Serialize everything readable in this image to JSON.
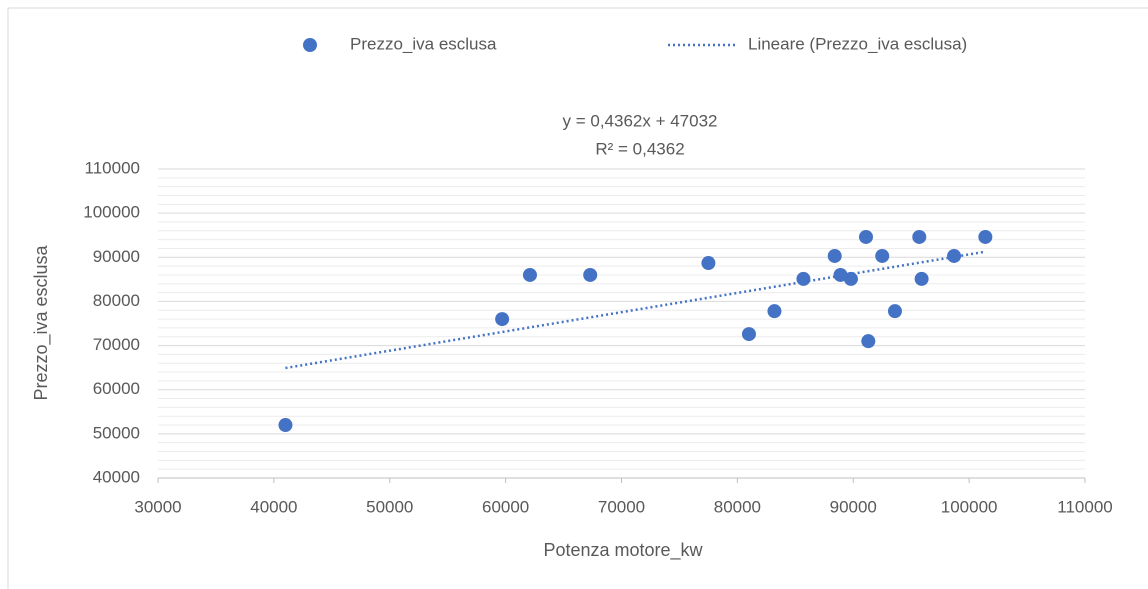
{
  "chart_data": {
    "type": "scatter",
    "x_label": "Potenza motore_kw",
    "y_label": "Prezzo_iva esclusa",
    "series": [
      {
        "name": "Prezzo_iva esclusa",
        "color": "#4472c4",
        "x": [
          41000,
          59700,
          62100,
          67300,
          77500,
          81000,
          83200,
          85700,
          88400,
          88900,
          89800,
          91100,
          91300,
          92500,
          93600,
          95700,
          95900,
          98700,
          101400
        ],
        "values": [
          52000,
          76000,
          86000,
          86000,
          88700,
          72600,
          77800,
          85100,
          90300,
          86000,
          85100,
          94600,
          71000,
          90300,
          77800,
          94600,
          85100,
          90300,
          94600
        ]
      }
    ],
    "trendline": {
      "name": "Lineare (Prezzo_iva esclusa)",
      "color": "#4472c4",
      "slope": 0.4362,
      "intercept": 47032,
      "equation_label": "y = 0,4362x + 47032",
      "r2_label": "R² = 0,4362"
    },
    "xlim": [
      30000,
      110000
    ],
    "xticks": [
      30000,
      40000,
      50000,
      60000,
      70000,
      80000,
      90000,
      100000,
      110000
    ],
    "ylim": [
      40000,
      110000
    ],
    "yticks": [
      40000,
      50000,
      60000,
      70000,
      80000,
      90000,
      100000,
      110000
    ],
    "yminorticks": [
      42000,
      44000,
      46000,
      48000,
      52000,
      54000,
      56000,
      58000,
      62000,
      64000,
      66000,
      68000,
      72000,
      74000,
      76000,
      78000,
      82000,
      84000,
      86000,
      88000,
      92000,
      94000,
      96000,
      98000,
      102000,
      104000,
      106000,
      108000
    ],
    "grid": true,
    "legend": "top"
  }
}
